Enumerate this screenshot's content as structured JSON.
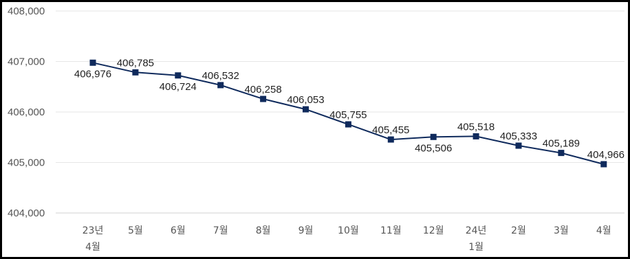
{
  "chart_data": {
    "type": "line",
    "title": "",
    "xlabel": "",
    "ylabel": "",
    "categories": [
      "23년\n4월",
      "5월",
      "6월",
      "7월",
      "8월",
      "9월",
      "10월",
      "11월",
      "12월",
      "24년\n1월",
      "2월",
      "3월",
      "4월"
    ],
    "series": [
      {
        "values": [
          406976,
          406785,
          406724,
          406532,
          406258,
          406053,
          405755,
          405455,
          405506,
          405518,
          405333,
          405189,
          404966
        ],
        "color": "#0f2a5c",
        "marker": "square"
      }
    ],
    "data_labels": [
      "406,976",
      "406,785",
      "406,724",
      "406,532",
      "406,258",
      "406,053",
      "405,755",
      "405,455",
      "405,506",
      "405,518",
      "405,333",
      "405,189",
      "404,966"
    ],
    "label_position": [
      "below",
      "above",
      "below",
      "above",
      "above",
      "above",
      "above",
      "above",
      "below",
      "above",
      "above",
      "above",
      "above"
    ],
    "ylim": [
      404000,
      408000
    ],
    "y_ticks": [
      404000,
      405000,
      406000,
      407000,
      408000
    ],
    "y_tick_labels": [
      "404,000",
      "405,000",
      "406,000",
      "407,000",
      "408,000"
    ],
    "grid": true,
    "legend": "none"
  }
}
